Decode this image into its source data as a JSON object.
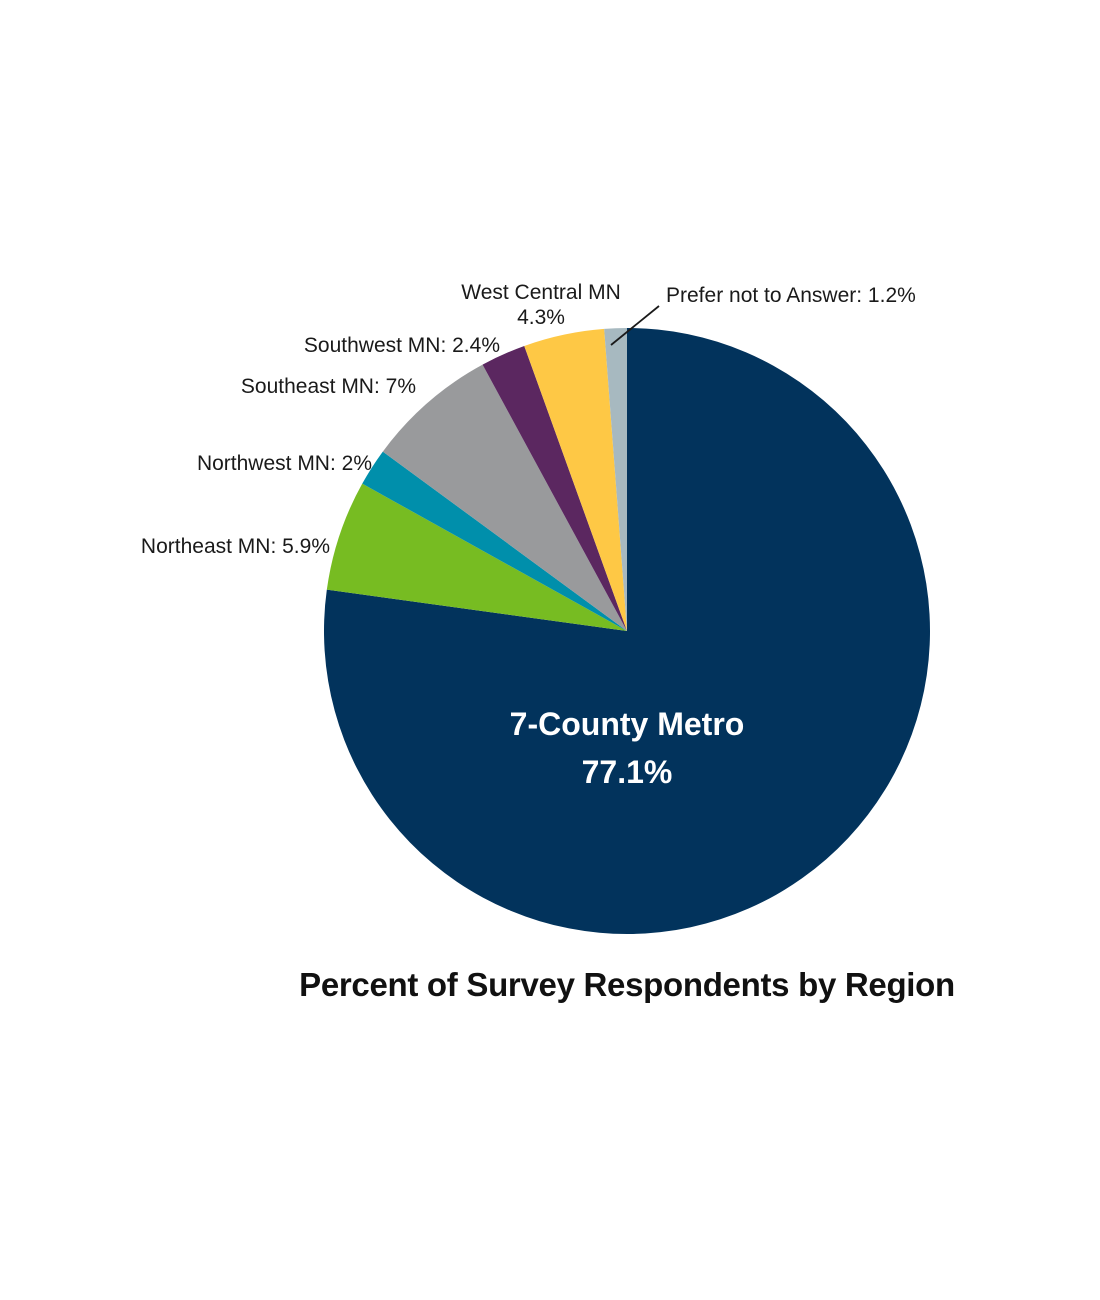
{
  "chart_data": {
    "type": "pie",
    "title": "Percent of Survey Respondents by Region",
    "unit": "%",
    "slices": [
      {
        "name": "7-County Metro",
        "value": 77.1,
        "color": "#02335c",
        "label_lines": [
          "7-County Metro",
          "77.1%"
        ]
      },
      {
        "name": "Northeast MN",
        "value": 5.9,
        "color": "#77bc22",
        "label_lines": [
          "Northeast MN: 5.9%"
        ]
      },
      {
        "name": "Northwest MN",
        "value": 2.0,
        "color": "#008fab",
        "label_lines": [
          "Northwest MN: 2%"
        ]
      },
      {
        "name": "Southeast MN",
        "value": 7.0,
        "color": "#999a9c",
        "label_lines": [
          "Southeast MN: 7%"
        ]
      },
      {
        "name": "Southwest MN",
        "value": 2.4,
        "color": "#5b2760",
        "label_lines": [
          "Southwest MN: 2.4%"
        ]
      },
      {
        "name": "West Central MN",
        "value": 4.3,
        "color": "#fec845",
        "label_lines": [
          "West Central MN",
          "4.3%"
        ]
      },
      {
        "name": "Prefer not to Answer",
        "value": 1.2,
        "color": "#a7b9c0",
        "label_lines": [
          "Prefer not to Answer: 1.2%"
        ]
      }
    ]
  }
}
